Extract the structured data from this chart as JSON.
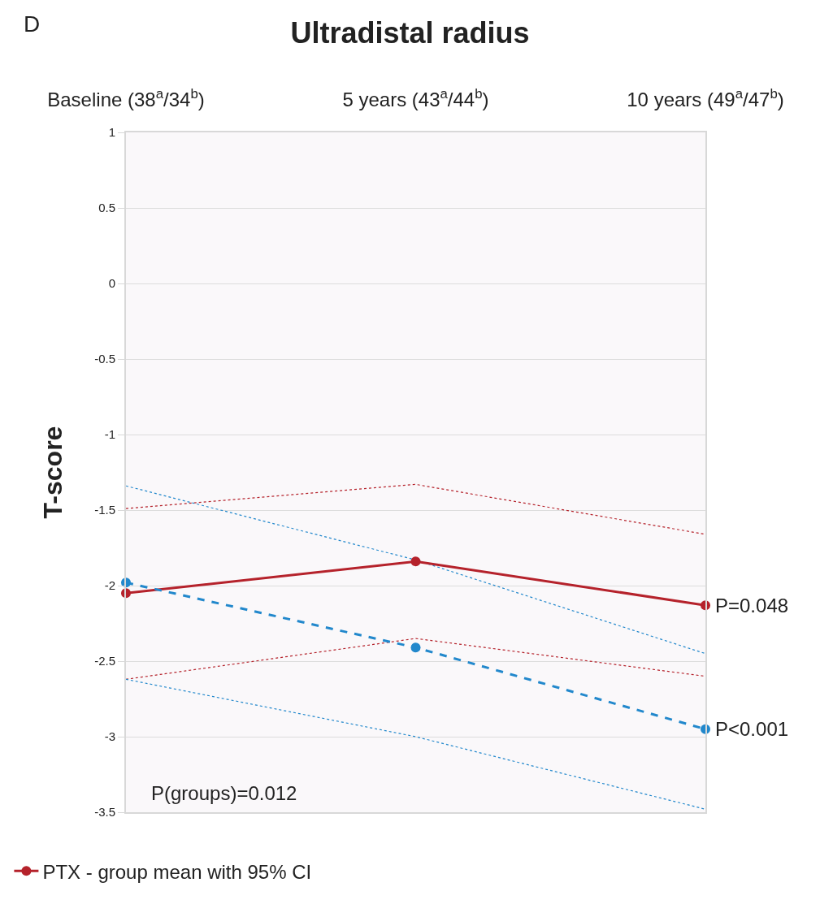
{
  "chart_data": {
    "type": "line",
    "title": "Ultradistal radius",
    "ylabel": "T-score",
    "categories": [
      "Baseline (38$^{a}$/34$^{b}$)",
      "5 years (43$^{a}$/44$^{b}$)",
      "10 years (49$^{a}$/47$^{b}$)"
    ],
    "series": [
      {
        "color": "#b5222b",
        "values": [
          -1.49,
          -1.33,
          -1.66
        ],
        "line_style": "dotted",
        "marker": "none"
      },
      {
        "color": "#b5222b",
        "values": [
          -2.62,
          -2.35,
          -2.6
        ],
        "line_style": "dotted",
        "marker": "none"
      },
      {
        "color": "#2288cc",
        "values": [
          -1.34,
          -1.83,
          -2.45
        ],
        "line_style": "dotted",
        "marker": "none"
      },
      {
        "color": "#2288cc",
        "values": [
          -2.62,
          -3.0,
          -3.48
        ],
        "line_style": "dotted",
        "marker": "none"
      },
      {
        "name": "PTX - group mean with 95% CI",
        "color": "#b5222b",
        "values": [
          -2.05,
          -1.84,
          -2.13
        ],
        "line_style": "solid"
      },
      {
        "color": "#2288cc",
        "values": [
          -1.98,
          -2.41,
          -2.95
        ],
        "line_style": "dashed"
      }
    ],
    "ylim": [
      -3.5,
      1
    ],
    "yticks": [
      1,
      0.5,
      0,
      -0.5,
      -1,
      -1.5,
      -2,
      -2.5,
      -3,
      -3.5
    ],
    "grid": "y",
    "legend": "bottom left",
    "marker": "circle",
    "annotations": [
      "D",
      {
        "text": "P=0.048",
        "x": "10 years (49$^{a}$/47$^{b}$)",
        "y": -2.13
      },
      {
        "text": "P<0.001",
        "x": "10 years (49$^{a}$/47$^{b}$)",
        "y": -2.95
      },
      "P(groups)=0.012"
    ]
  }
}
